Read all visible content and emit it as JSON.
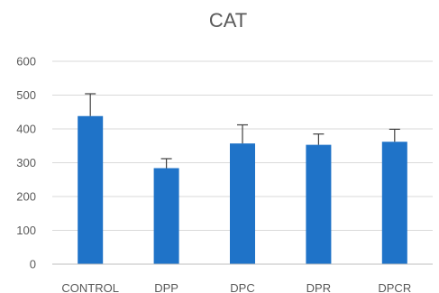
{
  "chart_data": {
    "type": "bar",
    "title": "CAT",
    "xlabel": "",
    "ylabel": "",
    "categories": [
      "CONTROL",
      "DPP",
      "DPC",
      "DPR",
      "DPCR"
    ],
    "values": [
      438,
      284,
      357,
      353,
      362
    ],
    "error": [
      66,
      28,
      55,
      32,
      37
    ],
    "ylim": [
      0,
      600
    ],
    "yticks": [
      0,
      100,
      200,
      300,
      400,
      500,
      600
    ],
    "grid": true,
    "bar_color": "#1F73C8"
  }
}
